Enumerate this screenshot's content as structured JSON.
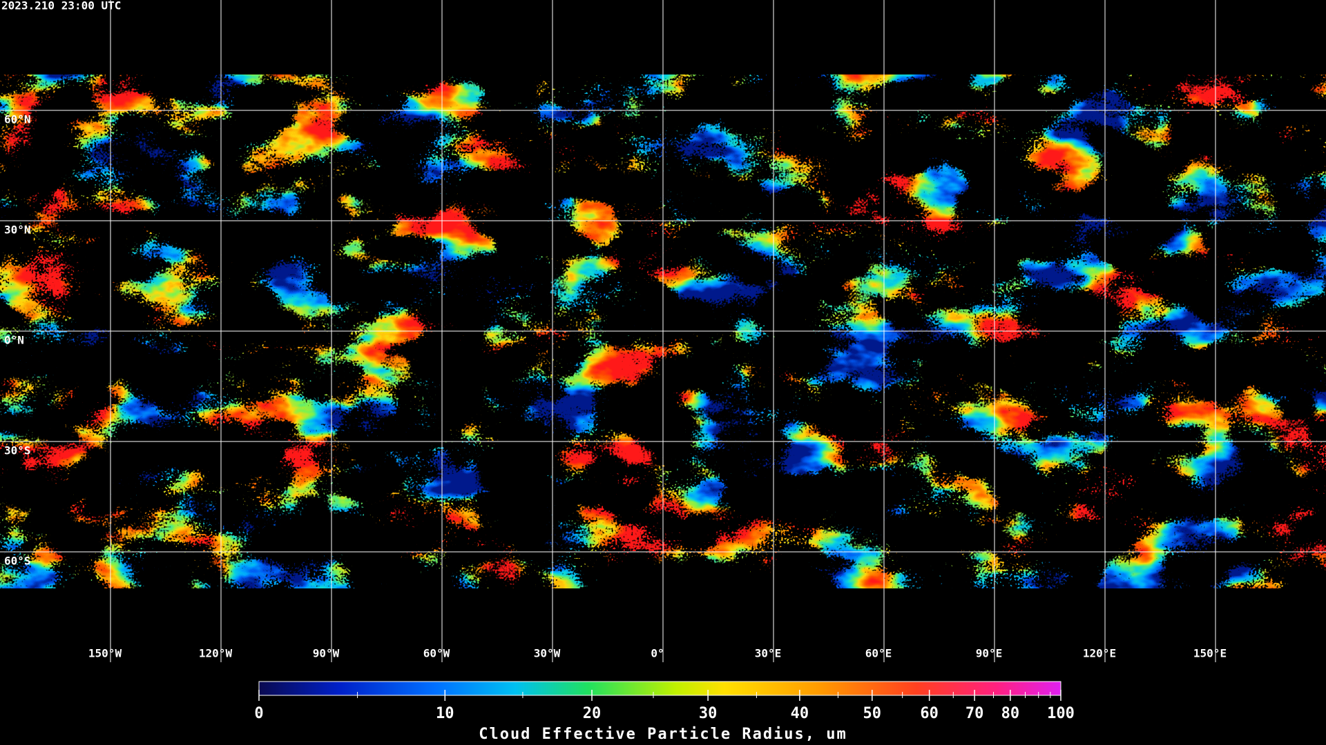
{
  "header": {
    "timestamp": "2023.210 23:00 UTC"
  },
  "map": {
    "lon_ticks": [
      {
        "value": -150,
        "label": "150°W"
      },
      {
        "value": -120,
        "label": "120°W"
      },
      {
        "value": -90,
        "label": "90°W"
      },
      {
        "value": -60,
        "label": "60°W"
      },
      {
        "value": -30,
        "label": "30°W"
      },
      {
        "value": 0,
        "label": "0°"
      },
      {
        "value": 30,
        "label": "30°E"
      },
      {
        "value": 60,
        "label": "60°E"
      },
      {
        "value": 90,
        "label": "90°E"
      },
      {
        "value": 120,
        "label": "120°E"
      },
      {
        "value": 150,
        "label": "150°E"
      }
    ],
    "lat_ticks": [
      {
        "value": 60,
        "label": "60°N"
      },
      {
        "value": 30,
        "label": "30°N"
      },
      {
        "value": 0,
        "label": "0°N"
      },
      {
        "value": -30,
        "label": "30°S"
      },
      {
        "value": -60,
        "label": "60°S"
      }
    ],
    "grid_color": "#ffffff"
  },
  "colorbar": {
    "label": "Cloud Effective Particle Radius, um",
    "range": [
      0,
      100
    ],
    "ticks": [
      0,
      10,
      20,
      30,
      40,
      50,
      60,
      70,
      80,
      100
    ],
    "minor_ticks": [
      5,
      15,
      25,
      35,
      45,
      55,
      65,
      75,
      85,
      90,
      95
    ]
  }
}
